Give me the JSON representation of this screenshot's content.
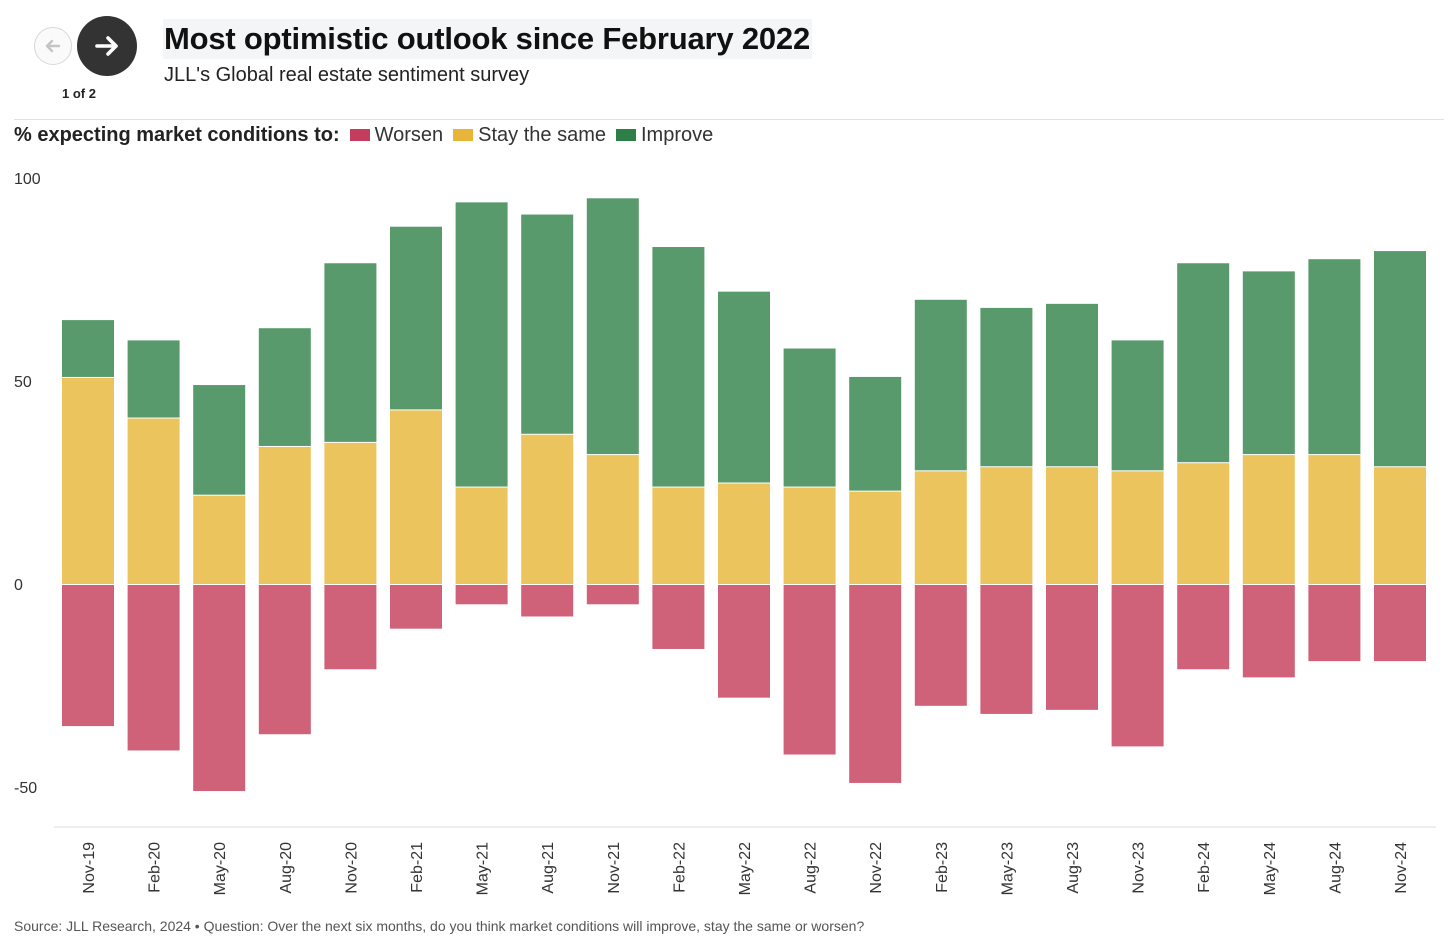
{
  "nav": {
    "counter": "1 of 2",
    "prev_icon": "arrow-left-icon",
    "next_icon": "arrow-right-icon"
  },
  "header": {
    "title": "Most optimistic outlook since February 2022",
    "subtitle": "JLL's Global real estate sentiment survey"
  },
  "legend": {
    "title": "% expecting market conditions to:",
    "items": [
      {
        "label": "Worsen",
        "color": "#c43d5c"
      },
      {
        "label": "Stay the same",
        "color": "#e8b43a"
      },
      {
        "label": "Improve",
        "color": "#2e7f47"
      }
    ]
  },
  "colors": {
    "worsen_bar": "#cf6178",
    "same_bar": "#ecc45d",
    "improve_bar": "#589a6c",
    "axis_text": "#333333",
    "baseline": "#dddddd"
  },
  "footer": {
    "source": "Source: JLL Research, 2024 • Question: Over the next six months, do you think market conditions will improve, stay the same or worsen?"
  },
  "chart_data": {
    "type": "bar",
    "stacked": true,
    "categories": [
      "Nov-19",
      "Feb-20",
      "May-20",
      "Aug-20",
      "Nov-20",
      "Feb-21",
      "May-21",
      "Aug-21",
      "Nov-21",
      "Feb-22",
      "May-22",
      "Aug-22",
      "Nov-22",
      "Feb-23",
      "May-23",
      "Aug-23",
      "Nov-23",
      "Feb-24",
      "May-24",
      "Aug-24",
      "Nov-24"
    ],
    "series": [
      {
        "name": "Worsen",
        "values": [
          -35,
          -41,
          -51,
          -37,
          -21,
          -11,
          -5,
          -8,
          -5,
          -16,
          -28,
          -42,
          -49,
          -30,
          -32,
          -31,
          -40,
          -21,
          -23,
          -19,
          -19
        ]
      },
      {
        "name": "Stay the same",
        "values": [
          51,
          41,
          22,
          34,
          35,
          43,
          24,
          37,
          32,
          24,
          25,
          24,
          23,
          28,
          29,
          29,
          28,
          30,
          32,
          32,
          29
        ]
      },
      {
        "name": "Improve",
        "values": [
          14,
          19,
          27,
          29,
          44,
          45,
          70,
          54,
          63,
          59,
          47,
          34,
          28,
          42,
          39,
          40,
          32,
          49,
          45,
          48,
          53
        ]
      }
    ],
    "yticks": [
      100,
      50,
      0,
      -50
    ],
    "ylim": [
      -60,
      100
    ],
    "grid": false,
    "legend_position": "top-left"
  }
}
